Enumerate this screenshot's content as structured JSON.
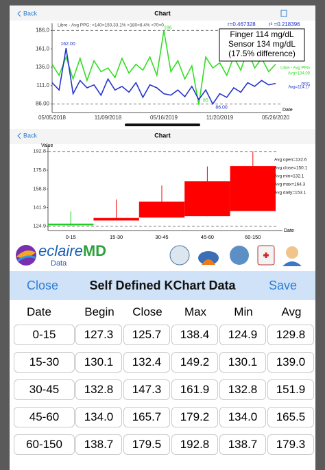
{
  "screen1": {
    "back": "Back",
    "title": "Chart"
  },
  "screen2": {
    "back": "Back",
    "title": "Chart"
  },
  "chart_data": [
    {
      "type": "line",
      "subtitle": "Libre - Avg PPG: >140=150,33.1% >180=8.4% <70=0",
      "x_label": "Date",
      "categories": [
        "05/05/2018",
        null,
        null,
        null,
        null,
        null,
        null,
        null,
        "11/09/2018",
        null,
        null,
        null,
        null,
        null,
        null,
        null,
        "05/16/2019",
        null,
        null,
        null,
        null,
        null,
        null,
        null,
        "11/20/2019",
        null,
        null,
        null,
        null,
        null,
        null,
        null,
        "05/26/2020"
      ],
      "series": [
        {
          "name": "Libre - Avg PPG",
          "avg_label": "Avg=134.09",
          "color": "#33dd22",
          "values": [
            140,
            125,
            150,
            120,
            148,
            118,
            145,
            130,
            135,
            122,
            148,
            128,
            140,
            132,
            150,
            125,
            186,
            130,
            145,
            120,
            138,
            85,
            150,
            135,
            142,
            125,
            150,
            132,
            160,
            135,
            148,
            130,
            140
          ]
        },
        {
          "name": "PPG",
          "avg_label": "Avg=114.17",
          "color": "#2233cc",
          "values": [
            115,
            105,
            162,
            100,
            118,
            108,
            112,
            98,
            120,
            105,
            110,
            102,
            115,
            95,
            112,
            108,
            100,
            98,
            105,
            96,
            110,
            92,
            105,
            86,
            100,
            95,
            108,
            102,
            115,
            110,
            118,
            112,
            114
          ]
        }
      ],
      "point_labels": [
        "162.00",
        "186",
        "85",
        "86.00"
      ],
      "r_label": "r=0.467328",
      "r2_label": "r² =0.218396",
      "callout": [
        "Finger 114 mg/dL",
        "Sensor 134 mg/dL",
        "(17.5% difference)"
      ],
      "ylim": [
        80,
        192
      ],
      "yticks": [
        {
          "value": 86,
          "label": "86.00"
        },
        {
          "value": 111,
          "label": "111.0"
        },
        {
          "value": 136,
          "label": "136.0"
        },
        {
          "value": 161,
          "label": "161.0"
        },
        {
          "value": 186,
          "label": "186.0"
        }
      ],
      "dashed_lines": [
        186,
        86
      ]
    },
    {
      "type": "candlestick",
      "y_label": "Value",
      "x_label": "Date",
      "categories": [
        "0-15",
        "15-30",
        "30-45",
        "45-60",
        "60-150"
      ],
      "open": [
        127.3,
        130.1,
        132.8,
        134.0,
        138.7
      ],
      "close": [
        125.7,
        132.4,
        147.3,
        165.7,
        179.5
      ],
      "high": [
        138.4,
        149.2,
        161.9,
        179.2,
        192.8
      ],
      "low": [
        124.9,
        130.1,
        132.8,
        134.0,
        138.7
      ],
      "up_color": "#ff0000",
      "down_color": "#22cc22",
      "ylim": [
        121,
        197
      ],
      "yticks": [
        124.9,
        141.9,
        158.8,
        175.8,
        192.8
      ],
      "dashed_lines": [
        192.8,
        124.9
      ],
      "notes": [
        "Avg open=132.6",
        "Avg close=150.1",
        "Avg min=132.1",
        "Avg max=164.3",
        "Avg daily=153.1"
      ]
    }
  ],
  "logo": {
    "name": "eclaire",
    "suffix": "MD",
    "sub": "Data"
  },
  "panel": {
    "close": "Close",
    "title": "Self Defined KChart Data",
    "save": "Save"
  },
  "table": {
    "header": [
      "Date",
      "Begin",
      "Close",
      "Max",
      "Min",
      "Avg"
    ],
    "rows": [
      [
        "0-15",
        "127.3",
        "125.7",
        "138.4",
        "124.9",
        "129.8"
      ],
      [
        "15-30",
        "130.1",
        "132.4",
        "149.2",
        "130.1",
        "139.0"
      ],
      [
        "30-45",
        "132.8",
        "147.3",
        "161.9",
        "132.8",
        "151.9"
      ],
      [
        "45-60",
        "134.0",
        "165.7",
        "179.2",
        "134.0",
        "165.5"
      ],
      [
        "60-150",
        "138.7",
        "179.5",
        "192.8",
        "138.7",
        "179.3"
      ]
    ]
  }
}
